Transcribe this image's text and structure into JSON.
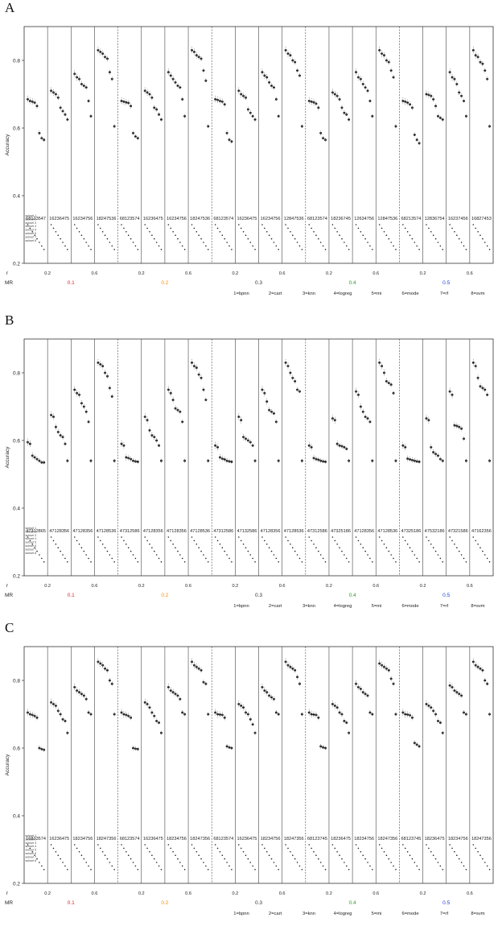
{
  "chart_data": [
    {
      "panel": "A",
      "type": "scatter",
      "ylabel": "Accuracy",
      "ylim": [
        0.2,
        0.9
      ],
      "y_ticks": [
        "0.2",
        "0.4",
        "0.6",
        "0.8"
      ],
      "r_label": "r",
      "mr_label": "MR",
      "r_ticks": [
        "0.2",
        "0.4",
        "0.6",
        "0.8"
      ],
      "mr_levels": [
        "0.1",
        "0.2",
        "0.3",
        "0.4",
        "0.5"
      ],
      "mr_colors": [
        "#d62728",
        "#ff8c00",
        "#333333",
        "#2ca02c",
        "#1f3fd6"
      ],
      "subset_labels": [
        "subset 1",
        "subset 2",
        "subset 3",
        "subset 4",
        "subset 5",
        "subset 6",
        "subset 7",
        "subset 8"
      ],
      "legend": [
        "1=bpnn",
        "2=cart",
        "3=knn",
        "4=logreg",
        "5=mi",
        "6=mode",
        "7=rf",
        "8=svm"
      ],
      "rank_labels": [
        "68123547",
        "16236475",
        "16234756",
        "18247536",
        "68123574",
        "16236475",
        "16234756",
        "18247536",
        "68123574",
        "16236475",
        "16234756",
        "12847536",
        "68123574",
        "18236745",
        "12634756",
        "12847536",
        "68213574",
        "12836754",
        "16237456",
        "16827453"
      ],
      "groups": [
        {
          "mr": "0.1",
          "r": "0.2",
          "values": [
            0.685,
            0.68,
            0.678,
            0.675,
            0.665,
            0.585,
            0.57,
            0.565
          ]
        },
        {
          "mr": "0.1",
          "r": "0.4",
          "values": [
            0.71,
            0.705,
            0.7,
            0.69,
            0.66,
            0.65,
            0.64,
            0.625
          ]
        },
        {
          "mr": "0.1",
          "r": "0.6",
          "values": [
            0.76,
            0.75,
            0.745,
            0.73,
            0.725,
            0.72,
            0.68,
            0.635
          ]
        },
        {
          "mr": "0.1",
          "r": "0.8",
          "values": [
            0.83,
            0.825,
            0.82,
            0.81,
            0.805,
            0.765,
            0.745,
            0.605
          ]
        },
        {
          "mr": "0.2",
          "r": "0.2",
          "values": [
            0.68,
            0.678,
            0.676,
            0.674,
            0.665,
            0.585,
            0.575,
            0.57
          ]
        },
        {
          "mr": "0.2",
          "r": "0.4",
          "values": [
            0.71,
            0.705,
            0.7,
            0.69,
            0.66,
            0.655,
            0.64,
            0.625
          ]
        },
        {
          "mr": "0.2",
          "r": "0.6",
          "values": [
            0.765,
            0.755,
            0.745,
            0.735,
            0.725,
            0.72,
            0.685,
            0.635
          ]
        },
        {
          "mr": "0.2",
          "r": "0.8",
          "values": [
            0.83,
            0.825,
            0.815,
            0.81,
            0.805,
            0.77,
            0.74,
            0.605
          ]
        },
        {
          "mr": "0.3",
          "r": "0.2",
          "values": [
            0.685,
            0.683,
            0.68,
            0.678,
            0.67,
            0.585,
            0.565,
            0.56
          ]
        },
        {
          "mr": "0.3",
          "r": "0.4",
          "values": [
            0.71,
            0.7,
            0.695,
            0.69,
            0.655,
            0.645,
            0.635,
            0.625
          ]
        },
        {
          "mr": "0.3",
          "r": "0.6",
          "values": [
            0.765,
            0.755,
            0.75,
            0.735,
            0.725,
            0.72,
            0.685,
            0.635
          ]
        },
        {
          "mr": "0.3",
          "r": "0.8",
          "values": [
            0.83,
            0.82,
            0.815,
            0.8,
            0.795,
            0.77,
            0.755,
            0.605
          ]
        },
        {
          "mr": "0.4",
          "r": "0.2",
          "values": [
            0.68,
            0.678,
            0.676,
            0.672,
            0.66,
            0.585,
            0.57,
            0.565
          ]
        },
        {
          "mr": "0.4",
          "r": "0.4",
          "values": [
            0.705,
            0.7,
            0.695,
            0.685,
            0.66,
            0.645,
            0.64,
            0.625
          ]
        },
        {
          "mr": "0.4",
          "r": "0.6",
          "values": [
            0.765,
            0.75,
            0.745,
            0.73,
            0.72,
            0.71,
            0.68,
            0.635
          ]
        },
        {
          "mr": "0.4",
          "r": "0.8",
          "values": [
            0.83,
            0.82,
            0.815,
            0.8,
            0.795,
            0.77,
            0.75,
            0.605
          ]
        },
        {
          "mr": "0.5",
          "r": "0.2",
          "values": [
            0.68,
            0.678,
            0.675,
            0.67,
            0.66,
            0.58,
            0.565,
            0.555
          ]
        },
        {
          "mr": "0.5",
          "r": "0.4",
          "values": [
            0.7,
            0.698,
            0.695,
            0.685,
            0.665,
            0.635,
            0.63,
            0.625
          ]
        },
        {
          "mr": "0.5",
          "r": "0.6",
          "values": [
            0.765,
            0.75,
            0.745,
            0.73,
            0.705,
            0.695,
            0.68,
            0.635
          ]
        },
        {
          "mr": "0.5",
          "r": "0.8",
          "values": [
            0.83,
            0.815,
            0.81,
            0.795,
            0.79,
            0.77,
            0.745,
            0.605
          ]
        }
      ]
    },
    {
      "panel": "B",
      "type": "scatter",
      "ylabel": "Accuracy",
      "ylim": [
        0.2,
        0.9
      ],
      "y_ticks": [
        "0.2",
        "0.4",
        "0.6",
        "0.8"
      ],
      "r_label": "r",
      "mr_label": "MR",
      "r_ticks": [
        "0.2",
        "0.4",
        "0.6",
        "0.8"
      ],
      "mr_levels": [
        "0.1",
        "0.2",
        "0.3",
        "0.4",
        "0.5"
      ],
      "mr_colors": [
        "#d62728",
        "#ff8c00",
        "#333333",
        "#2ca02c",
        "#1f3fd6"
      ],
      "subset_labels": [
        "subset 1",
        "subset 2",
        "subset 3",
        "subset 4",
        "subset 5",
        "subset 6",
        "subset 7",
        "subset 8"
      ],
      "legend": [
        "1=bpnn",
        "2=cart",
        "3=knn",
        "4=logreg",
        "5=mi",
        "6=mode",
        "7=rf",
        "8=svm"
      ],
      "rank_labels": [
        "47312865",
        "47128356",
        "47128356",
        "47128536",
        "47312586",
        "47128356",
        "47128356",
        "47128536",
        "47312586",
        "47132586",
        "47128356",
        "47128536",
        "47312586",
        "47325186",
        "47128356",
        "47128536",
        "47325186",
        "47532186",
        "47321586",
        "47162356"
      ],
      "groups": [
        {
          "mr": "0.1",
          "r": "0.2",
          "values": [
            0.595,
            0.59,
            0.555,
            0.55,
            0.545,
            0.54,
            0.535,
            0.535
          ]
        },
        {
          "mr": "0.1",
          "r": "0.4",
          "values": [
            0.675,
            0.67,
            0.64,
            0.625,
            0.615,
            0.61,
            0.59,
            0.54
          ]
        },
        {
          "mr": "0.1",
          "r": "0.6",
          "values": [
            0.75,
            0.74,
            0.735,
            0.71,
            0.7,
            0.685,
            0.655,
            0.54
          ]
        },
        {
          "mr": "0.1",
          "r": "0.8",
          "values": [
            0.83,
            0.825,
            0.82,
            0.8,
            0.79,
            0.755,
            0.73,
            0.54
          ]
        },
        {
          "mr": "0.2",
          "r": "0.2",
          "values": [
            0.59,
            0.585,
            0.55,
            0.548,
            0.545,
            0.54,
            0.538,
            0.537
          ]
        },
        {
          "mr": "0.2",
          "r": "0.4",
          "values": [
            0.67,
            0.66,
            0.63,
            0.615,
            0.61,
            0.6,
            0.585,
            0.54
          ]
        },
        {
          "mr": "0.2",
          "r": "0.6",
          "values": [
            0.75,
            0.74,
            0.72,
            0.695,
            0.69,
            0.685,
            0.655,
            0.54
          ]
        },
        {
          "mr": "0.2",
          "r": "0.8",
          "values": [
            0.83,
            0.82,
            0.815,
            0.795,
            0.785,
            0.75,
            0.72,
            0.54
          ]
        },
        {
          "mr": "0.3",
          "r": "0.2",
          "values": [
            0.585,
            0.58,
            0.55,
            0.546,
            0.544,
            0.54,
            0.538,
            0.537
          ]
        },
        {
          "mr": "0.3",
          "r": "0.4",
          "values": [
            0.67,
            0.66,
            0.61,
            0.605,
            0.6,
            0.595,
            0.585,
            0.54
          ]
        },
        {
          "mr": "0.3",
          "r": "0.6",
          "values": [
            0.75,
            0.74,
            0.715,
            0.69,
            0.685,
            0.68,
            0.655,
            0.54
          ]
        },
        {
          "mr": "0.3",
          "r": "0.8",
          "values": [
            0.83,
            0.82,
            0.8,
            0.785,
            0.775,
            0.75,
            0.745,
            0.54
          ]
        },
        {
          "mr": "0.4",
          "r": "0.2",
          "values": [
            0.585,
            0.58,
            0.548,
            0.545,
            0.543,
            0.54,
            0.538,
            0.537
          ]
        },
        {
          "mr": "0.4",
          "r": "0.4",
          "values": [
            0.665,
            0.66,
            0.59,
            0.585,
            0.583,
            0.58,
            0.575,
            0.54
          ]
        },
        {
          "mr": "0.4",
          "r": "0.6",
          "values": [
            0.745,
            0.735,
            0.7,
            0.685,
            0.67,
            0.665,
            0.655,
            0.54
          ]
        },
        {
          "mr": "0.4",
          "r": "0.8",
          "values": [
            0.83,
            0.82,
            0.8,
            0.775,
            0.77,
            0.765,
            0.74,
            0.54
          ]
        },
        {
          "mr": "0.5",
          "r": "0.2",
          "values": [
            0.585,
            0.58,
            0.546,
            0.544,
            0.542,
            0.54,
            0.538,
            0.537
          ]
        },
        {
          "mr": "0.5",
          "r": "0.4",
          "values": [
            0.665,
            0.66,
            0.58,
            0.565,
            0.56,
            0.555,
            0.545,
            0.54
          ]
        },
        {
          "mr": "0.5",
          "r": "0.6",
          "values": [
            0.745,
            0.735,
            0.645,
            0.643,
            0.64,
            0.635,
            0.605,
            0.54
          ]
        },
        {
          "mr": "0.5",
          "r": "0.8",
          "values": [
            0.83,
            0.82,
            0.785,
            0.76,
            0.755,
            0.75,
            0.735,
            0.54
          ]
        }
      ]
    },
    {
      "panel": "C",
      "type": "scatter",
      "ylabel": "Accuracy",
      "ylim": [
        0.2,
        0.9
      ],
      "y_ticks": [
        "0.2",
        "0.4",
        "0.6",
        "0.8"
      ],
      "r_label": "r",
      "mr_label": "MR",
      "r_ticks": [
        "0.2",
        "0.4",
        "0.6",
        "0.8"
      ],
      "mr_levels": [
        "0.1",
        "0.2",
        "0.3",
        "0.4",
        "0.5"
      ],
      "mr_colors": [
        "#d62728",
        "#ff8c00",
        "#333333",
        "#2ca02c",
        "#1f3fd6"
      ],
      "subset_labels": [
        "subset 1",
        "subset 2",
        "subset 3",
        "subset 4",
        "subset 5",
        "subset 6",
        "subset 7",
        "subset 8"
      ],
      "legend": [
        "1=bpnn",
        "2=cart",
        "3=knn",
        "4=logreg",
        "5=mi",
        "6=mode",
        "7=rf",
        "8=svm"
      ],
      "rank_labels": [
        "16823574",
        "16236475",
        "18234756",
        "18247356",
        "68123574",
        "16236475",
        "18234756",
        "18247356",
        "68123574",
        "16236475",
        "18234756",
        "18247356",
        "68123745",
        "18236475",
        "18234756",
        "18247356",
        "68123745",
        "18236475",
        "18234756",
        "18247356"
      ],
      "groups": [
        {
          "mr": "0.1",
          "r": "0.2",
          "values": [
            0.705,
            0.7,
            0.698,
            0.695,
            0.69,
            0.6,
            0.597,
            0.595
          ]
        },
        {
          "mr": "0.1",
          "r": "0.4",
          "values": [
            0.735,
            0.73,
            0.725,
            0.71,
            0.7,
            0.685,
            0.68,
            0.645
          ]
        },
        {
          "mr": "0.1",
          "r": "0.6",
          "values": [
            0.78,
            0.77,
            0.765,
            0.76,
            0.755,
            0.745,
            0.705,
            0.7
          ]
        },
        {
          "mr": "0.1",
          "r": "0.8",
          "values": [
            0.855,
            0.85,
            0.845,
            0.835,
            0.83,
            0.8,
            0.79,
            0.7
          ]
        },
        {
          "mr": "0.2",
          "r": "0.2",
          "values": [
            0.705,
            0.7,
            0.698,
            0.695,
            0.69,
            0.6,
            0.598,
            0.597
          ]
        },
        {
          "mr": "0.2",
          "r": "0.4",
          "values": [
            0.735,
            0.73,
            0.72,
            0.705,
            0.695,
            0.68,
            0.675,
            0.645
          ]
        },
        {
          "mr": "0.2",
          "r": "0.6",
          "values": [
            0.78,
            0.77,
            0.765,
            0.76,
            0.755,
            0.745,
            0.705,
            0.7
          ]
        },
        {
          "mr": "0.2",
          "r": "0.8",
          "values": [
            0.855,
            0.845,
            0.84,
            0.835,
            0.83,
            0.795,
            0.79,
            0.7
          ]
        },
        {
          "mr": "0.3",
          "r": "0.2",
          "values": [
            0.705,
            0.7,
            0.699,
            0.698,
            0.69,
            0.605,
            0.602,
            0.6
          ]
        },
        {
          "mr": "0.3",
          "r": "0.4",
          "values": [
            0.73,
            0.725,
            0.72,
            0.705,
            0.7,
            0.685,
            0.67,
            0.645
          ]
        },
        {
          "mr": "0.3",
          "r": "0.6",
          "values": [
            0.78,
            0.77,
            0.765,
            0.755,
            0.75,
            0.745,
            0.705,
            0.7
          ]
        },
        {
          "mr": "0.3",
          "r": "0.8",
          "values": [
            0.855,
            0.845,
            0.84,
            0.835,
            0.83,
            0.81,
            0.79,
            0.7
          ]
        },
        {
          "mr": "0.4",
          "r": "0.2",
          "values": [
            0.705,
            0.7,
            0.699,
            0.698,
            0.69,
            0.605,
            0.602,
            0.6
          ]
        },
        {
          "mr": "0.4",
          "r": "0.4",
          "values": [
            0.73,
            0.725,
            0.72,
            0.705,
            0.7,
            0.68,
            0.675,
            0.645
          ]
        },
        {
          "mr": "0.4",
          "r": "0.6",
          "values": [
            0.79,
            0.78,
            0.775,
            0.765,
            0.76,
            0.755,
            0.705,
            0.7
          ]
        },
        {
          "mr": "0.4",
          "r": "0.8",
          "values": [
            0.85,
            0.845,
            0.84,
            0.835,
            0.83,
            0.805,
            0.79,
            0.7
          ]
        },
        {
          "mr": "0.5",
          "r": "0.2",
          "values": [
            0.705,
            0.7,
            0.699,
            0.697,
            0.69,
            0.615,
            0.61,
            0.605
          ]
        },
        {
          "mr": "0.5",
          "r": "0.4",
          "values": [
            0.73,
            0.725,
            0.72,
            0.71,
            0.7,
            0.68,
            0.675,
            0.645
          ]
        },
        {
          "mr": "0.5",
          "r": "0.6",
          "values": [
            0.785,
            0.78,
            0.77,
            0.765,
            0.76,
            0.755,
            0.705,
            0.7
          ]
        },
        {
          "mr": "0.5",
          "r": "0.8",
          "values": [
            0.855,
            0.845,
            0.84,
            0.835,
            0.83,
            0.8,
            0.79,
            0.7
          ]
        }
      ]
    }
  ]
}
